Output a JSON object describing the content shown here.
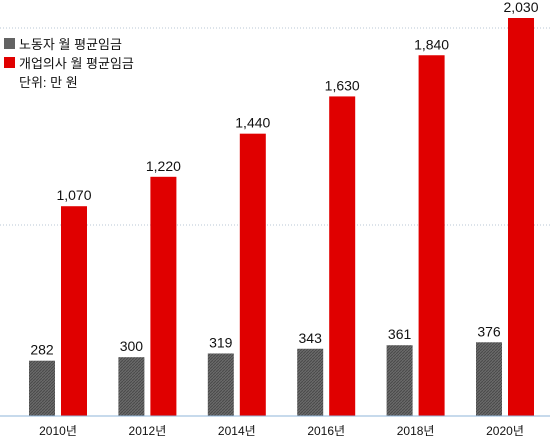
{
  "chart_data": {
    "type": "bar",
    "categories": [
      "2010년",
      "2012년",
      "2014년",
      "2016년",
      "2018년",
      "2020년"
    ],
    "series": [
      {
        "name": "노동자 월 평균임금",
        "values": [
          282,
          300,
          319,
          343,
          361,
          376
        ],
        "labels": [
          "282",
          "300",
          "319",
          "343",
          "361",
          "376"
        ],
        "color": "#636363"
      },
      {
        "name": "개업의사 월 평균임금",
        "values": [
          1070,
          1220,
          1440,
          1630,
          1840,
          2030
        ],
        "labels": [
          "1,070",
          "1,220",
          "1,440",
          "1,630",
          "1,840",
          "2,030"
        ],
        "color": "#e00000"
      }
    ],
    "unit_note": "단위: 만 원",
    "ylim": [
      0,
      2030
    ],
    "grid": true,
    "legend_position": "top-left"
  }
}
